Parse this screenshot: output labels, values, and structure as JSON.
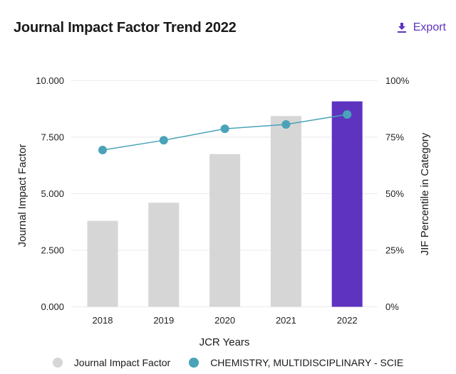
{
  "header": {
    "title": "Journal Impact Factor Trend 2022",
    "export_label": "Export",
    "export_icon": "download-icon"
  },
  "colors": {
    "bar": "#d6d6d6",
    "bar_highlight": "#5e33bf",
    "line": "#4aa3b8",
    "grid": "#eeeeee",
    "accent": "#5e33bf"
  },
  "chart_data": {
    "type": "bar",
    "title": "Journal Impact Factor Trend 2022",
    "xlabel": "JCR Years",
    "ylabel": "Journal Impact Factor",
    "y2label": "JIF Percentile in Category",
    "categories": [
      "2018",
      "2019",
      "2020",
      "2021",
      "2022"
    ],
    "highlight_category": "2022",
    "ylim": [
      0,
      10
    ],
    "y_ticks": [
      "0.000",
      "2.500",
      "5.000",
      "7.500",
      "10.000"
    ],
    "y_tick_values": [
      0,
      2.5,
      5,
      7.5,
      10
    ],
    "y2lim": [
      0,
      100
    ],
    "y2_ticks": [
      "0%",
      "25%",
      "50%",
      "75%",
      "100%"
    ],
    "y2_tick_values": [
      0,
      25,
      50,
      75,
      100
    ],
    "grid": true,
    "legend_position": "bottom",
    "series": [
      {
        "name": "Journal Impact Factor",
        "type": "bar",
        "axis": "left",
        "values": [
          3.8,
          4.6,
          6.75,
          8.43,
          9.08
        ]
      },
      {
        "name": "CHEMISTRY, MULTIDISCIPLINARY - SCIE",
        "type": "line",
        "axis": "right",
        "values": [
          69.3,
          73.6,
          78.7,
          80.6,
          85.0
        ]
      }
    ]
  }
}
